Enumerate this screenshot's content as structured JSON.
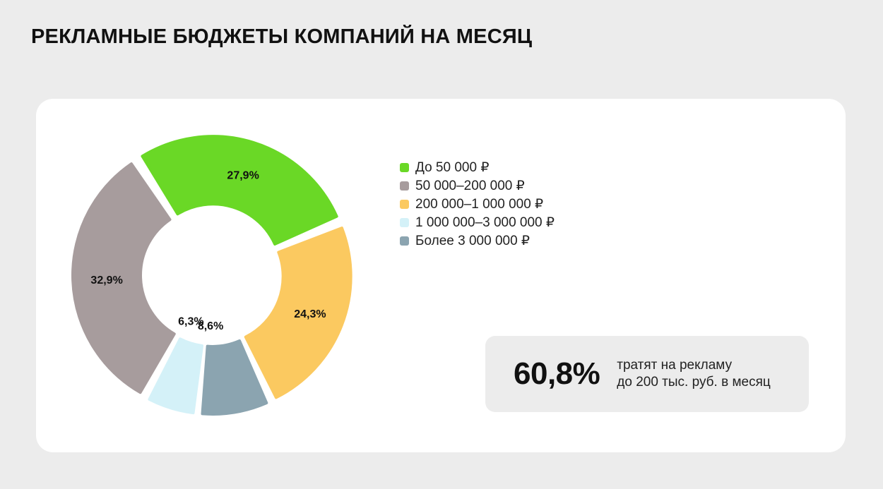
{
  "page": {
    "title": "РЕКЛАМНЫЕ БЮДЖЕТЫ КОМПАНИЙ НА МЕСЯЦ"
  },
  "chart_data": {
    "type": "pie",
    "title": "",
    "categories": [
      "До 50 000 ₽",
      "50 000–200 000 ₽",
      "200 000–1 000 000 ₽",
      "1 000 000–3 000 000 ₽",
      "Более 3 000 000 ₽"
    ],
    "values": [
      27.9,
      32.9,
      24.3,
      6.3,
      8.6
    ],
    "value_labels": [
      "27,9%",
      "32,9%",
      "24,3%",
      "6,3%",
      "8,6%"
    ],
    "colors": [
      "#6ad826",
      "#a79c9d",
      "#fbc960",
      "#d4f1f8",
      "#8ba4b0"
    ],
    "style": "donut",
    "legend_position": "right"
  },
  "legend": {
    "items": [
      {
        "label": "До 50 000 ₽",
        "color": "#6ad826"
      },
      {
        "label": "50 000–200 000 ₽",
        "color": "#a79c9d"
      },
      {
        "label": "200 000–1 000 000 ₽",
        "color": "#fbc960"
      },
      {
        "label": "1 000 000–3 000 000 ₽",
        "color": "#d4f1f8"
      },
      {
        "label": "Более 3 000 000 ₽",
        "color": "#8ba4b0"
      }
    ]
  },
  "highlight": {
    "value": "60,8%",
    "caption_line1": "тратят на рекламу",
    "caption_line2": "до 200 тыс. руб. в месяц"
  }
}
